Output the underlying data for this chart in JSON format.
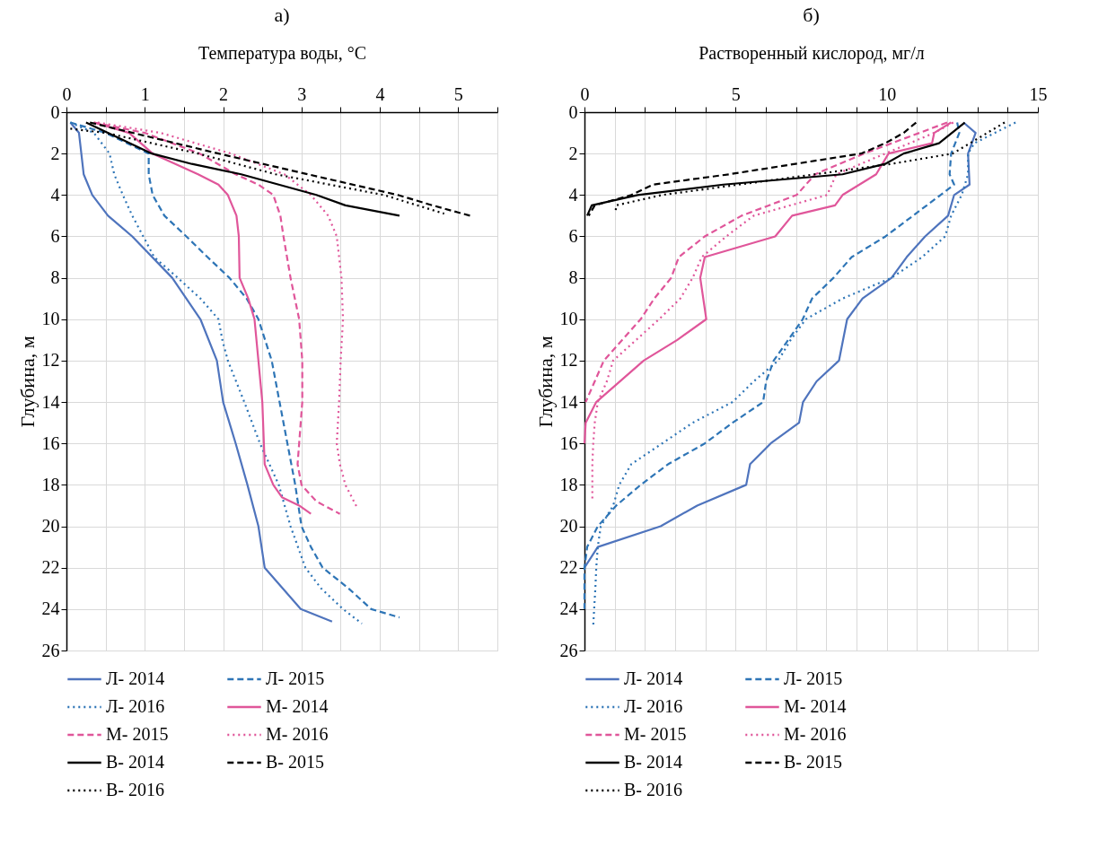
{
  "chart_data": [
    {
      "type": "line",
      "title": "а)",
      "xlabel": "Температура воды, °C",
      "ylabel": "Глубина, м",
      "xlim": [
        0,
        5.5
      ],
      "xticks": [
        0,
        {
          "value": 0.5,
          "label": null
        },
        1,
        {
          "value": 1.5,
          "label": null
        },
        2,
        {
          "value": 2.5,
          "label": null
        },
        3,
        {
          "value": 3.5,
          "label": null
        },
        4,
        {
          "value": 4.5,
          "label": null
        },
        5,
        {
          "value": 5.5,
          "label": null
        }
      ],
      "ylim": [
        26,
        0
      ],
      "yticks": [
        0,
        2,
        4,
        6,
        8,
        10,
        12,
        14,
        16,
        18,
        20,
        22,
        24,
        26
      ],
      "grid": true,
      "legend": "bottom",
      "series": [
        {
          "name": "Л- 2014",
          "color": "#4f74bd",
          "line_style": "solid",
          "x": [
            0.05,
            0.16,
            0.22,
            0.33,
            0.53,
            0.84,
            1.35,
            1.71,
            1.92,
            2.0,
            2.16,
            2.31,
            2.45,
            2.53,
            2.99,
            3.39
          ],
          "values": [
            0.5,
            1,
            3,
            4,
            5,
            6,
            8,
            10,
            12,
            14,
            16,
            18,
            20,
            22,
            24,
            24.6
          ]
        },
        {
          "name": "Л- 2015",
          "color": "#2e75b6",
          "line_style": "dashed",
          "x": [
            0.05,
            0.5,
            1.05,
            1.05,
            1.1,
            1.25,
            1.53,
            1.8,
            2.08,
            2.3,
            2.45,
            2.62,
            2.72,
            2.82,
            2.92,
            3.0,
            3.12,
            3.27,
            3.6,
            3.89,
            4.25
          ],
          "values": [
            0.5,
            1,
            2,
            3,
            4,
            5,
            6,
            7,
            8,
            9,
            10,
            12,
            14,
            16,
            18,
            20,
            21,
            22,
            23,
            24,
            24.4
          ]
        },
        {
          "name": "Л- 2016",
          "color": "#2e75b6",
          "line_style": "dotted",
          "x": [
            0.05,
            0.35,
            0.55,
            0.61,
            0.72,
            0.84,
            0.98,
            1.12,
            1.42,
            1.71,
            1.94,
            1.99,
            2.06,
            2.27,
            2.47,
            2.71,
            2.86,
            3.05,
            3.25,
            3.53,
            3.77
          ],
          "values": [
            0.5,
            1,
            2,
            3,
            4,
            5,
            6,
            7,
            8,
            9,
            10,
            11,
            12,
            14,
            16,
            18,
            20,
            22,
            23,
            24,
            24.7
          ]
        },
        {
          "name": "М- 2014",
          "color": "#e0569a",
          "line_style": "solid",
          "x": [
            0.35,
            0.8,
            1.1,
            1.68,
            1.94,
            2.06,
            2.17,
            2.2,
            2.21,
            2.32,
            2.4,
            2.45,
            2.5,
            2.52,
            2.53,
            2.64,
            2.75,
            2.97,
            3.12
          ],
          "values": [
            0.5,
            1,
            2,
            3,
            3.5,
            4,
            5,
            6,
            8,
            9,
            10,
            12,
            14,
            16,
            17,
            18,
            18.6,
            19,
            19.4
          ]
        },
        {
          "name": "М- 2015",
          "color": "#e0569a",
          "line_style": "dashed",
          "x": [
            0.35,
            1.0,
            1.7,
            2.16,
            2.45,
            2.64,
            2.73,
            2.77,
            2.86,
            2.97,
            3.01,
            3.01,
            2.97,
            2.95,
            3.0,
            3.19,
            3.49
          ],
          "values": [
            0.5,
            1,
            2,
            3,
            3.5,
            4,
            5,
            6,
            8,
            10,
            12,
            14,
            16,
            17,
            18,
            18.8,
            19.4
          ]
        },
        {
          "name": "М- 2016",
          "color": "#e0569a",
          "line_style": "dotted",
          "x": [
            0.4,
            1.2,
            2.1,
            2.78,
            3.12,
            3.34,
            3.45,
            3.51,
            3.53,
            3.5,
            3.48,
            3.45,
            3.49,
            3.56,
            3.71
          ],
          "values": [
            0.5,
            1,
            2,
            3,
            4,
            5,
            6,
            8,
            10,
            12,
            14,
            16,
            17,
            18,
            19.1
          ]
        },
        {
          "name": "В- 2014",
          "color": "#000000",
          "line_style": "solid",
          "x": [
            0.25,
            1.09,
            1.6,
            2.23,
            2.71,
            3.19,
            3.56,
            4.25
          ],
          "values": [
            0.5,
            2,
            2.5,
            3,
            3.5,
            4,
            4.5,
            5
          ]
        },
        {
          "name": "В- 2015",
          "color": "#000000",
          "line_style": "dashed",
          "x": [
            0.3,
            1.94,
            3.08,
            4.23,
            4.67,
            5.15
          ],
          "values": [
            0.5,
            2,
            3,
            4,
            4.5,
            5
          ]
        },
        {
          "name": "В- 2016",
          "color": "#000000",
          "line_style": "dotted",
          "x": [
            0.05,
            0.5,
            1.68,
            2.67,
            4.05,
            4.82
          ],
          "values": [
            0.8,
            1,
            2,
            3,
            4,
            4.9
          ]
        }
      ]
    },
    {
      "type": "line",
      "title": "б)",
      "xlabel": "Растворенный кислород, мг/л",
      "ylabel": "Глубина, м",
      "xlim": [
        0,
        15
      ],
      "xticks": [
        0,
        {
          "value": 1,
          "label": null
        },
        {
          "value": 2,
          "label": null
        },
        {
          "value": 3,
          "label": null
        },
        {
          "value": 4,
          "label": null
        },
        5,
        {
          "value": 6,
          "label": null
        },
        {
          "value": 7,
          "label": null
        },
        {
          "value": 8,
          "label": null
        },
        {
          "value": 9,
          "label": null
        },
        10,
        {
          "value": 11,
          "label": null
        },
        {
          "value": 12,
          "label": null
        },
        {
          "value": 13,
          "label": null
        },
        {
          "value": 14,
          "label": null
        },
        15
      ],
      "ylim": [
        26,
        0
      ],
      "yticks": [
        0,
        2,
        4,
        6,
        8,
        10,
        12,
        14,
        16,
        18,
        20,
        22,
        24,
        26
      ],
      "grid": true,
      "legend": "bottom",
      "series": [
        {
          "name": "Л- 2014",
          "color": "#4f74bd",
          "line_style": "solid",
          "x": [
            12.54,
            12.94,
            12.69,
            12.74,
            12.23,
            12.03,
            11.27,
            10.66,
            10.16,
            9.2,
            8.69,
            8.42,
            7.68,
            7.23,
            7.1,
            6.16,
            5.48,
            5.35,
            3.73,
            2.52,
            0.44,
            0
          ],
          "values": [
            0.5,
            1,
            2,
            3.5,
            4,
            5,
            6,
            7,
            8,
            9,
            10,
            12,
            13,
            14,
            15,
            16,
            17,
            18,
            19,
            20,
            21,
            22
          ]
        },
        {
          "name": "Л- 2015",
          "color": "#2e75b6",
          "line_style": "dashed",
          "x": [
            12.33,
            12.4,
            12.13,
            12.08,
            12.23,
            11.78,
            10.87,
            9.96,
            8.84,
            8.24,
            7.53,
            7.22,
            6.26,
            6.01,
            5.91,
            4.9,
            3.98,
            2.77,
            1.86,
            1.05,
            0.44,
            0.09,
            0,
            0
          ],
          "values": [
            0.5,
            1,
            2,
            3,
            3.5,
            4,
            5,
            6,
            7,
            8,
            9,
            10,
            12,
            13,
            14,
            15,
            16,
            17,
            18,
            19,
            20,
            21,
            22,
            24
          ]
        },
        {
          "name": "Л- 2016",
          "color": "#2e75b6",
          "line_style": "dotted",
          "x": [
            14.26,
            12.9,
            12.69,
            12.69,
            12.48,
            12.13,
            11.93,
            11.17,
            10.16,
            8.54,
            7.32,
            6.82,
            6.41,
            5.6,
            4.9,
            3.58,
            2.57,
            1.55,
            1.15,
            0.95,
            0.54,
            0.44,
            0.39,
            0.36,
            0.32,
            0.29
          ],
          "values": [
            0.5,
            1.5,
            2,
            3,
            4,
            5,
            6,
            7,
            8,
            9,
            10,
            11,
            12,
            13,
            14,
            15,
            16,
            17,
            18,
            19,
            20,
            21,
            22,
            23,
            24,
            24.8
          ]
        },
        {
          "name": "М- 2014",
          "color": "#e0569a",
          "line_style": "solid",
          "x": [
            12.13,
            11.57,
            11.5,
            10.06,
            9.65,
            8.54,
            8.29,
            6.87,
            6.31,
            3.98,
            3.83,
            4.03,
            3.07,
            1.96,
            0.39,
            0.04,
            0
          ],
          "values": [
            0.5,
            1,
            1.5,
            2,
            3,
            4,
            4.5,
            5,
            6,
            7,
            8,
            10,
            11,
            12,
            14,
            15,
            16
          ]
        },
        {
          "name": "М- 2015",
          "color": "#e0569a",
          "line_style": "dashed",
          "x": [
            12.0,
            9.25,
            7.63,
            7.02,
            5.2,
            3.98,
            3.12,
            2.87,
            2.31,
            1.86,
            0.64,
            0.34,
            0.04
          ],
          "values": [
            0.5,
            2,
            3,
            4,
            5,
            6,
            7,
            8,
            9,
            10,
            12,
            13,
            14
          ]
        },
        {
          "name": "М- 2016",
          "color": "#e0569a",
          "line_style": "dotted",
          "x": [
            12.2,
            11.57,
            8.33,
            8.03,
            5.6,
            4.69,
            3.88,
            3.58,
            3.17,
            2.47,
            0.95,
            0.74,
            0.44,
            0.34,
            0.29,
            0.26,
            0.26,
            0.26
          ],
          "values": [
            0.5,
            1,
            3,
            4,
            5,
            6,
            7,
            8,
            9,
            10,
            12,
            13,
            14,
            15,
            16,
            17,
            18,
            18.8
          ]
        },
        {
          "name": "В- 2014",
          "color": "#000000",
          "line_style": "solid",
          "x": [
            12.58,
            11.73,
            10.56,
            9.95,
            8.54,
            4.59,
            1.76,
            0.24,
            0.09
          ],
          "values": [
            0.5,
            1.5,
            2,
            2.5,
            3,
            3.5,
            4,
            4.5,
            5
          ]
        },
        {
          "name": "В- 2015",
          "color": "#000000",
          "line_style": "dashed",
          "x": [
            10.97,
            10.56,
            9.95,
            9.15,
            4.79,
            2.26,
            1.55,
            0.34,
            0.14
          ],
          "values": [
            0.5,
            1,
            1.5,
            2,
            3,
            3.5,
            4,
            4.5,
            5
          ]
        },
        {
          "name": "В- 2016",
          "color": "#000000",
          "line_style": "dotted",
          "x": [
            13.9,
            12.18,
            10.16,
            7.63,
            2.57,
            1.05,
            1.03
          ],
          "values": [
            0.5,
            2,
            2.5,
            3,
            4,
            4.5,
            4.8
          ]
        }
      ]
    }
  ]
}
